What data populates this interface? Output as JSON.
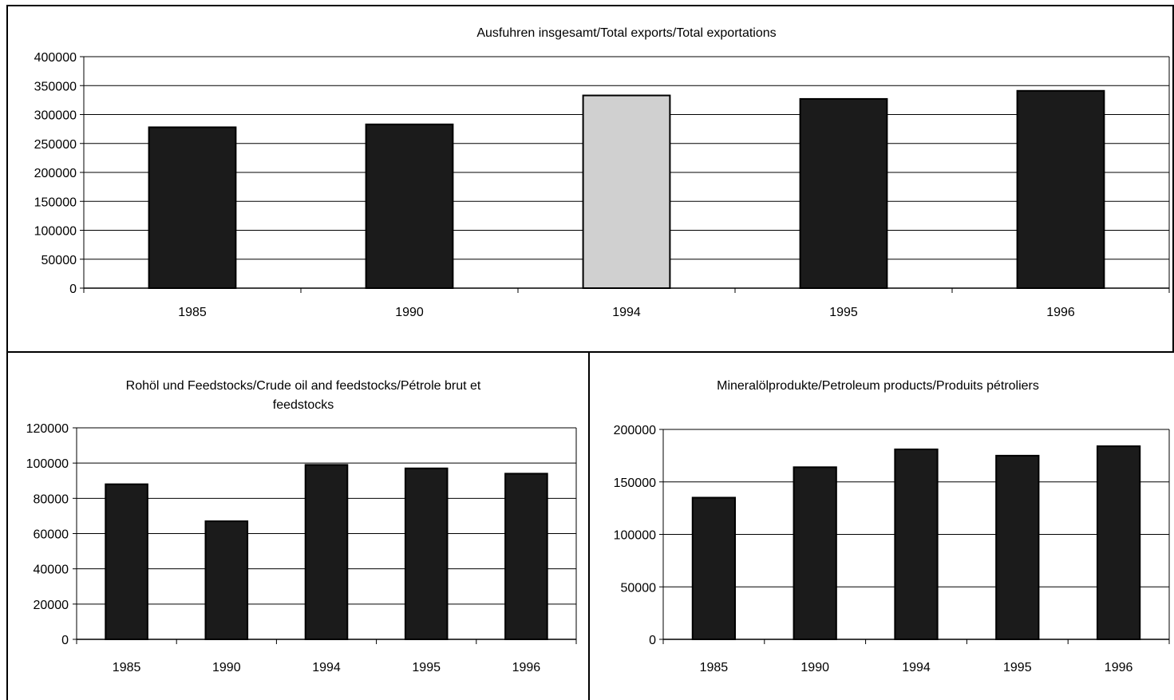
{
  "colors": {
    "bar": "#1b1b1b",
    "bar_light": "#d0d0d0",
    "grid": "#000000",
    "frame": "#000000"
  },
  "chart_data": [
    {
      "id": "total",
      "type": "bar",
      "title": [
        "Ausfuhren insgesamt/Total exports/Total exportations"
      ],
      "categories": [
        "1985",
        "1990",
        "1994",
        "1995",
        "1996"
      ],
      "values": [
        278000,
        283000,
        333000,
        327000,
        341000
      ],
      "ylim": [
        0,
        400000
      ],
      "yticks": [
        0,
        50000,
        100000,
        150000,
        200000,
        250000,
        300000,
        350000,
        400000
      ],
      "grid": true,
      "legend": "none"
    },
    {
      "id": "crude",
      "type": "bar",
      "title": [
        "Rohöl und Feedstocks/Crude oil and feedstocks/Pétrole brut et",
        "feedstocks"
      ],
      "categories": [
        "1985",
        "1990",
        "1994",
        "1995",
        "1996"
      ],
      "values": [
        88000,
        67000,
        99000,
        97000,
        94000
      ],
      "ylim": [
        0,
        120000
      ],
      "yticks": [
        0,
        20000,
        40000,
        60000,
        80000,
        100000,
        120000
      ],
      "grid": true,
      "legend": "none"
    },
    {
      "id": "products",
      "type": "bar",
      "title": [
        "Mineralölprodukte/Petroleum products/Produits pétroliers"
      ],
      "categories": [
        "1985",
        "1990",
        "1994",
        "1995",
        "1996"
      ],
      "values": [
        135000,
        164000,
        181000,
        175000,
        184000
      ],
      "ylim": [
        0,
        200000
      ],
      "yticks": [
        0,
        50000,
        100000,
        150000,
        200000
      ],
      "grid": true,
      "legend": "none"
    }
  ]
}
